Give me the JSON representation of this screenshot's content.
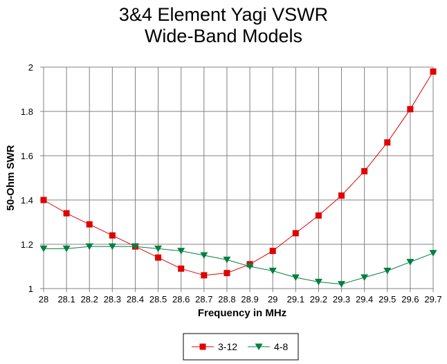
{
  "chart_data": {
    "type": "line",
    "title_lines": [
      "3&4 Element Yagi VSWR",
      "Wide-Band Models"
    ],
    "xlabel": "Frequency in MHz",
    "ylabel": "50-Ohm SWR",
    "x": [
      28,
      28.1,
      28.2,
      28.3,
      28.4,
      28.5,
      28.6,
      28.7,
      28.8,
      28.9,
      29,
      29.1,
      29.2,
      29.3,
      29.4,
      29.5,
      29.6,
      29.7
    ],
    "x_tick_labels": [
      "28",
      "28.1",
      "28.2",
      "28.3",
      "28.4",
      "28.5",
      "28.6",
      "28.7",
      "28.8",
      "28.9",
      "29",
      "29.1",
      "29.2",
      "29.3",
      "29.4",
      "29.5",
      "29.6",
      "29.7"
    ],
    "xlim": [
      28,
      29.7
    ],
    "ylim": [
      1,
      2
    ],
    "y_ticks": [
      1,
      1.2,
      1.4,
      1.6,
      1.8,
      2
    ],
    "y_tick_labels": [
      "1",
      "1.2",
      "1.4",
      "1.6",
      "1.8",
      "2"
    ],
    "grid": true,
    "legend_position": "bottom-center",
    "series": [
      {
        "name": "3-12",
        "color": "#e00000",
        "marker": "square",
        "values": [
          1.4,
          1.34,
          1.29,
          1.24,
          1.19,
          1.14,
          1.09,
          1.06,
          1.07,
          1.11,
          1.17,
          1.25,
          1.33,
          1.42,
          1.53,
          1.66,
          1.81,
          1.98
        ]
      },
      {
        "name": "4-8",
        "color": "#008040",
        "marker": "triangle-down",
        "values": [
          1.18,
          1.18,
          1.19,
          1.19,
          1.19,
          1.18,
          1.17,
          1.15,
          1.13,
          1.1,
          1.08,
          1.05,
          1.03,
          1.02,
          1.05,
          1.08,
          1.12,
          1.16
        ]
      }
    ]
  }
}
